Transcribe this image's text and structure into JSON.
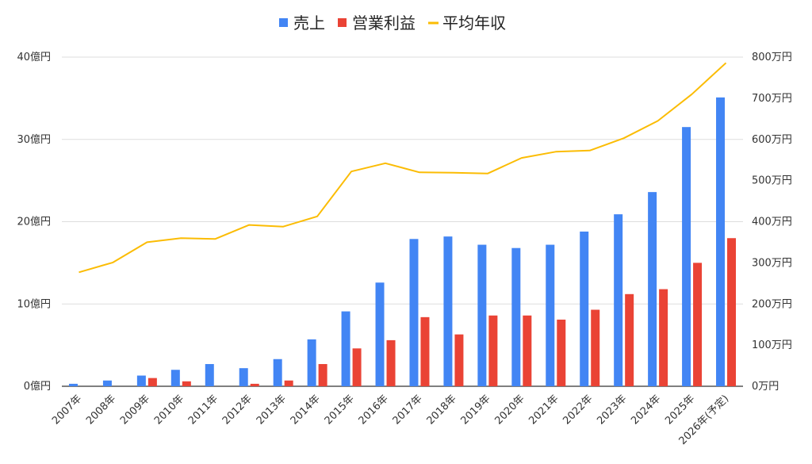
{
  "chart_data": {
    "type": "bar",
    "categories": [
      "2007年",
      "2008年",
      "2009年",
      "2010年",
      "2011年",
      "2012年",
      "2013年",
      "2014年",
      "2015年",
      "2016年",
      "2017年",
      "2018年",
      "2019年",
      "2020年",
      "2021年",
      "2022年",
      "2023年",
      "2024年",
      "2025年",
      "2026年(予定)"
    ],
    "series": [
      {
        "name": "売上",
        "type": "bar",
        "axis": "left",
        "color": "#4285f4",
        "values": [
          0.3,
          0.7,
          1.3,
          2.0,
          2.7,
          2.2,
          3.3,
          5.7,
          9.1,
          12.6,
          17.9,
          18.2,
          17.2,
          16.8,
          17.2,
          18.8,
          20.9,
          23.6,
          31.5,
          35.1
        ]
      },
      {
        "name": "営業利益",
        "type": "bar",
        "axis": "left",
        "color": "#ea4335",
        "values": [
          0,
          0,
          1.0,
          0.6,
          0,
          0.3,
          0.7,
          2.7,
          4.6,
          5.6,
          8.4,
          6.3,
          8.6,
          8.6,
          8.1,
          9.3,
          11.2,
          11.8,
          15.0,
          18.0
        ]
      },
      {
        "name": "平均年収",
        "type": "line",
        "axis": "right",
        "color": "#fbbc04",
        "values": [
          277,
          301,
          350,
          360,
          358,
          392,
          388,
          413,
          522,
          542,
          520,
          519,
          517,
          555,
          570,
          573,
          603,
          645,
          710,
          786
        ]
      }
    ],
    "left_axis": {
      "ylim": [
        0,
        40
      ],
      "ticks": [
        0,
        10,
        20,
        30,
        40
      ],
      "tick_labels": [
        "0億円",
        "10億円",
        "20億円",
        "30億円",
        "40億円"
      ]
    },
    "right_axis": {
      "ylim": [
        0,
        800
      ],
      "ticks": [
        0,
        100,
        200,
        300,
        400,
        500,
        600,
        700,
        800
      ],
      "tick_labels": [
        "0万円",
        "100万円",
        "200万円",
        "300万円",
        "400万円",
        "500万円",
        "600万円",
        "700万円",
        "800万円"
      ]
    },
    "grid": true,
    "legend_position": "top-center"
  }
}
